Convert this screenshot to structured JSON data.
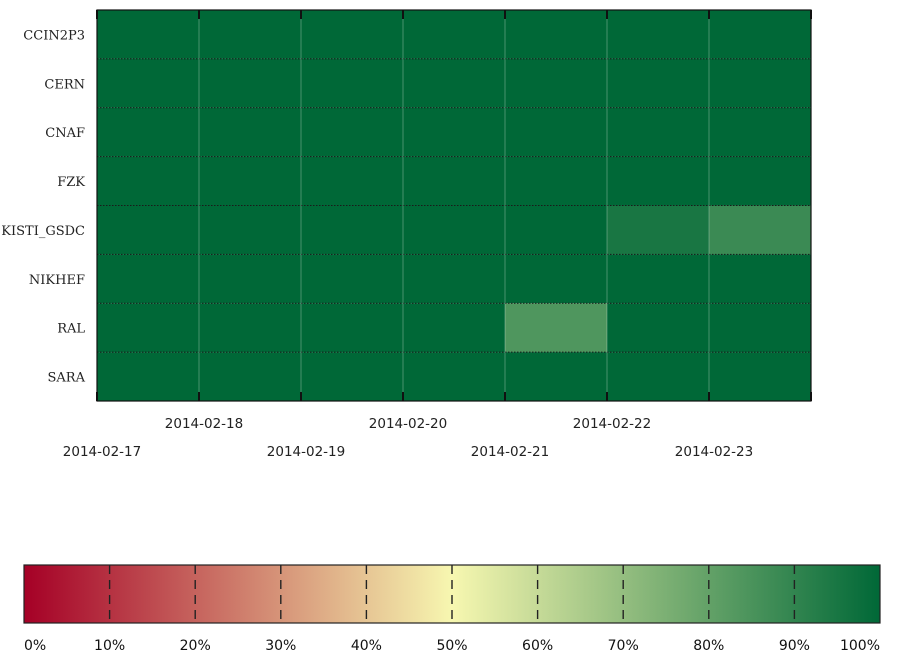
{
  "chart_data": {
    "type": "heatmap",
    "title": "",
    "xlabel": "",
    "ylabel": "",
    "rows": [
      "CCIN2P3",
      "CERN",
      "CNAF",
      "FZK",
      "KISTI_GSDC",
      "NIKHEF",
      "RAL",
      "SARA"
    ],
    "columns": [
      "2014-02-17",
      "2014-02-18",
      "2014-02-19",
      "2014-02-20",
      "2014-02-21",
      "2014-02-22",
      "2014-02-23"
    ],
    "values": [
      [
        100,
        100,
        100,
        100,
        100,
        100,
        100
      ],
      [
        100,
        100,
        100,
        100,
        100,
        100,
        100
      ],
      [
        100,
        100,
        100,
        100,
        100,
        100,
        100
      ],
      [
        100,
        100,
        100,
        100,
        100,
        100,
        100
      ],
      [
        100,
        100,
        100,
        100,
        100,
        95,
        88
      ],
      [
        100,
        100,
        100,
        100,
        100,
        100,
        100
      ],
      [
        100,
        100,
        100,
        100,
        84,
        100,
        100
      ],
      [
        100,
        100,
        100,
        100,
        100,
        100,
        100
      ]
    ],
    "colorbar": {
      "ticks": [
        "0%",
        "10%",
        "20%",
        "30%",
        "40%",
        "50%",
        "60%",
        "70%",
        "80%",
        "90%",
        "100%"
      ],
      "colors": [
        "#a50026",
        "#f7f7b0",
        "#006837"
      ]
    }
  }
}
